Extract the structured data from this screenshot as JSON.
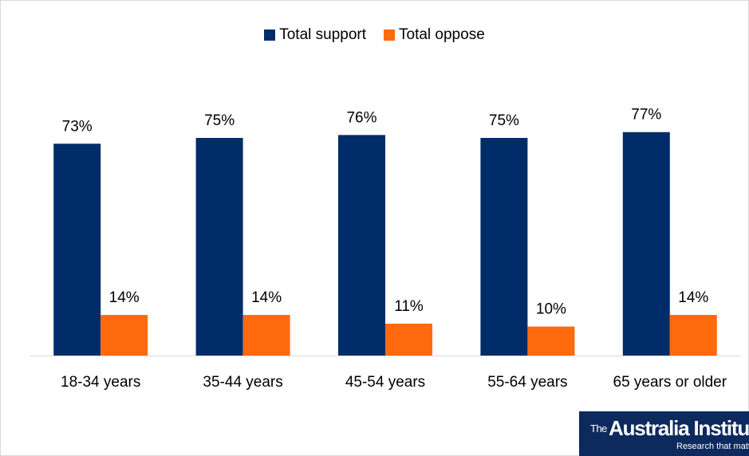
{
  "chart_data": {
    "type": "bar",
    "categories": [
      "18-34 years",
      "35-44 years",
      "45-54 years",
      "55-64 years",
      "65 years or older"
    ],
    "series": [
      {
        "name": "Total support",
        "values": [
          73,
          75,
          76,
          75,
          77
        ],
        "labels": [
          "73%",
          "75%",
          "76%",
          "75%",
          "77%"
        ],
        "color": "#002d69"
      },
      {
        "name": "Total oppose",
        "values": [
          14,
          14,
          11,
          10,
          14
        ],
        "labels": [
          "14%",
          "14%",
          "11%",
          "10%",
          "14%"
        ],
        "color": "#ff6a0e"
      }
    ],
    "ylim": [
      0,
      100
    ],
    "legend_position": "top-center",
    "grid": false,
    "unit": "%"
  },
  "logo": {
    "prefix": "The",
    "name": "Australia Institute",
    "tagline": "Research that matters."
  }
}
